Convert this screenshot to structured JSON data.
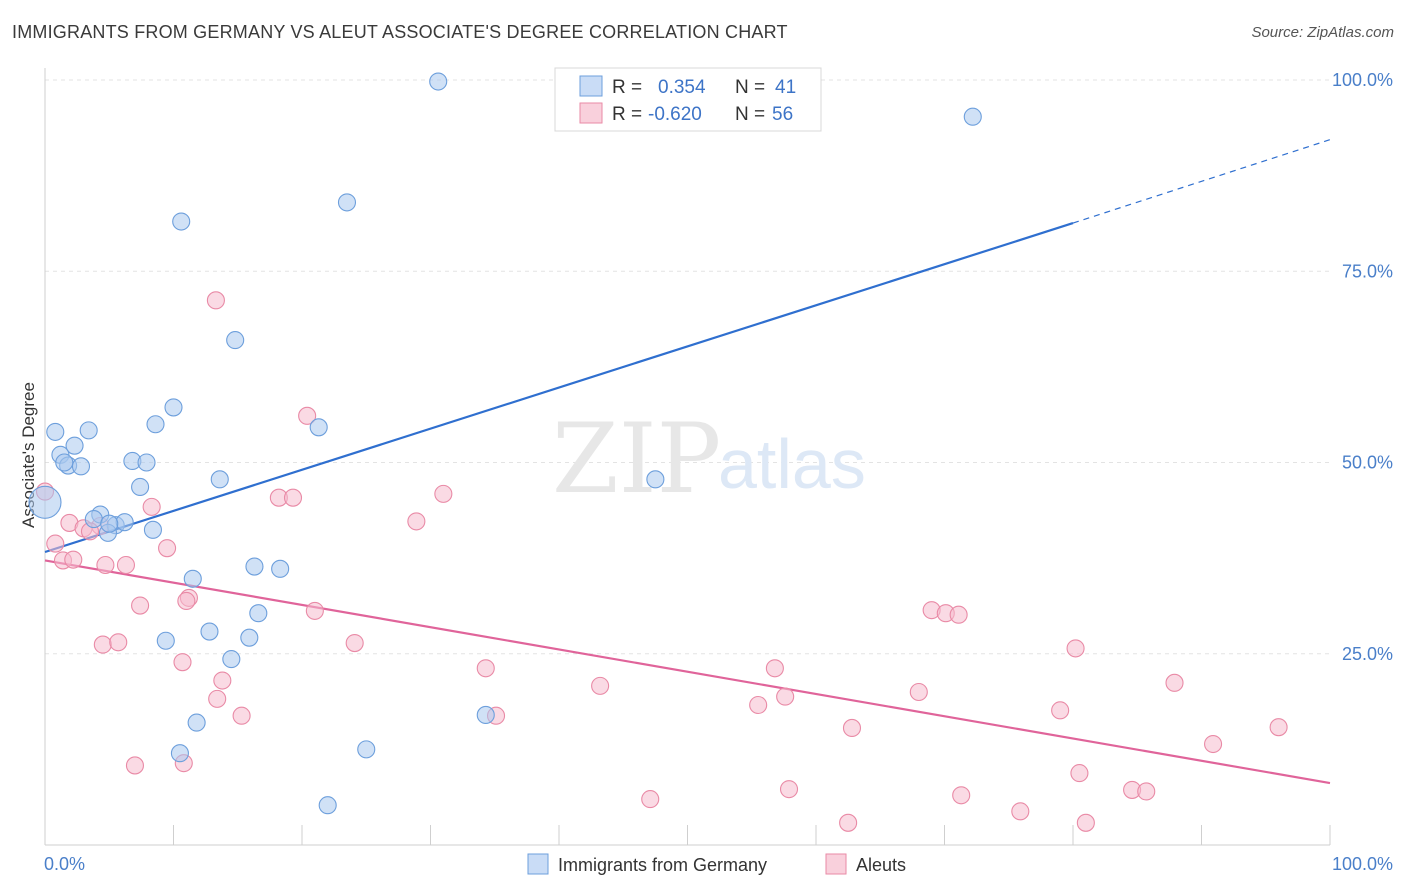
{
  "title": "IMMIGRANTS FROM GERMANY VS ALEUT ASSOCIATE'S DEGREE CORRELATION CHART",
  "source": "Source: ZipAtlas.com",
  "watermark": {
    "zip": "ZIP",
    "atlas": "atlas"
  },
  "legend": {
    "rows": [
      {
        "r_label": "R =",
        "r_value": "0.354",
        "n_label": "N =",
        "n_value": "41"
      },
      {
        "r_label": "R =",
        "r_value": "-0.620",
        "n_label": "N =",
        "n_value": "56"
      }
    ]
  },
  "colors": {
    "blue_fill": "#aac8ef",
    "blue_stroke": "#6d9fdc",
    "blue_line": "#2f6fcf",
    "pink_fill": "#f6bccd",
    "pink_stroke": "#e98aa6",
    "pink_line": "#e0649a",
    "tick_color": "#4a7fc9",
    "grid": "#e3e3e3"
  },
  "chart_data": {
    "type": "scatter",
    "title": "IMMIGRANTS FROM GERMANY VS ALEUT ASSOCIATE'S DEGREE CORRELATION CHART",
    "xlabel": "",
    "ylabel": "Associate's Degree",
    "xlim": [
      0,
      100
    ],
    "ylim": [
      0,
      100
    ],
    "x_tick_labels": [
      "0.0%",
      "100.0%"
    ],
    "y_ticks": [
      25,
      50,
      75,
      100
    ],
    "y_tick_labels": [
      "25.0%",
      "50.0%",
      "75.0%",
      "100.0%"
    ],
    "grid": true,
    "legend_position": "top-center",
    "series": [
      {
        "name": "Immigrants from Germany",
        "color": "#6d9fdc",
        "trend": {
          "x": [
            0,
            80
          ],
          "y": [
            38.3,
            81.3
          ],
          "dashed_to": [
            100,
            92.2
          ]
        },
        "points": [
          [
            30.6,
            99.8
          ],
          [
            72.2,
            95.2
          ],
          [
            10.6,
            81.5
          ],
          [
            23.5,
            84.0
          ],
          [
            14.8,
            66.0
          ],
          [
            10.0,
            57.2
          ],
          [
            8.6,
            55.0
          ],
          [
            21.3,
            54.6
          ],
          [
            0.8,
            54.0
          ],
          [
            3.4,
            54.2
          ],
          [
            2.3,
            52.2
          ],
          [
            1.2,
            51.0
          ],
          [
            1.8,
            49.6
          ],
          [
            2.8,
            49.5
          ],
          [
            6.8,
            50.2
          ],
          [
            7.9,
            50.0
          ],
          [
            13.6,
            47.8
          ],
          [
            7.4,
            46.8
          ],
          [
            0.0,
            44.8
          ],
          [
            4.3,
            43.2
          ],
          [
            3.8,
            42.6
          ],
          [
            5.5,
            41.8
          ],
          [
            6.2,
            42.2
          ],
          [
            4.9,
            40.8
          ],
          [
            8.4,
            41.2
          ],
          [
            16.3,
            36.4
          ],
          [
            11.5,
            34.8
          ],
          [
            18.3,
            36.1
          ],
          [
            16.6,
            30.3
          ],
          [
            12.8,
            27.9
          ],
          [
            9.4,
            26.7
          ],
          [
            15.9,
            27.1
          ],
          [
            14.5,
            24.3
          ],
          [
            11.8,
            16.0
          ],
          [
            10.5,
            12.0
          ],
          [
            25.0,
            12.5
          ],
          [
            22.0,
            5.2
          ],
          [
            34.3,
            17.0
          ],
          [
            47.5,
            47.8
          ],
          [
            5.0,
            42.0
          ],
          [
            1.5,
            50.0
          ]
        ]
      },
      {
        "name": "Aleuts",
        "color": "#e98aa6",
        "trend": {
          "x": [
            0,
            100
          ],
          "y": [
            37.2,
            8.1
          ]
        },
        "points": [
          [
            0.0,
            46.2
          ],
          [
            1.9,
            42.1
          ],
          [
            3.0,
            41.4
          ],
          [
            4.3,
            41.7
          ],
          [
            8.3,
            44.2
          ],
          [
            0.8,
            39.4
          ],
          [
            1.4,
            37.2
          ],
          [
            2.2,
            37.3
          ],
          [
            4.7,
            36.6
          ],
          [
            6.3,
            36.6
          ],
          [
            9.5,
            38.8
          ],
          [
            13.3,
            71.2
          ],
          [
            20.4,
            56.1
          ],
          [
            18.2,
            45.4
          ],
          [
            19.3,
            45.4
          ],
          [
            28.9,
            42.3
          ],
          [
            31.0,
            45.9
          ],
          [
            7.4,
            31.3
          ],
          [
            11.2,
            32.3
          ],
          [
            11.0,
            31.9
          ],
          [
            21.0,
            30.6
          ],
          [
            4.5,
            26.2
          ],
          [
            5.7,
            26.5
          ],
          [
            10.7,
            23.9
          ],
          [
            13.8,
            21.5
          ],
          [
            13.4,
            19.1
          ],
          [
            15.3,
            16.9
          ],
          [
            24.1,
            26.4
          ],
          [
            34.3,
            23.1
          ],
          [
            35.1,
            16.9
          ],
          [
            43.2,
            20.8
          ],
          [
            55.5,
            18.3
          ],
          [
            56.8,
            23.1
          ],
          [
            57.6,
            19.4
          ],
          [
            62.8,
            15.3
          ],
          [
            69.0,
            30.7
          ],
          [
            70.1,
            30.3
          ],
          [
            71.1,
            30.1
          ],
          [
            68.0,
            20.0
          ],
          [
            80.2,
            25.7
          ],
          [
            79.0,
            17.6
          ],
          [
            87.9,
            21.2
          ],
          [
            96.0,
            15.4
          ],
          [
            90.9,
            13.2
          ],
          [
            80.5,
            9.4
          ],
          [
            7.0,
            10.4
          ],
          [
            10.8,
            10.7
          ],
          [
            47.1,
            6.0
          ],
          [
            57.9,
            7.3
          ],
          [
            62.5,
            2.9
          ],
          [
            71.3,
            6.5
          ],
          [
            75.9,
            4.4
          ],
          [
            81.0,
            2.9
          ],
          [
            84.6,
            7.2
          ],
          [
            85.7,
            7.0
          ],
          [
            3.5,
            41.0
          ]
        ]
      }
    ]
  }
}
